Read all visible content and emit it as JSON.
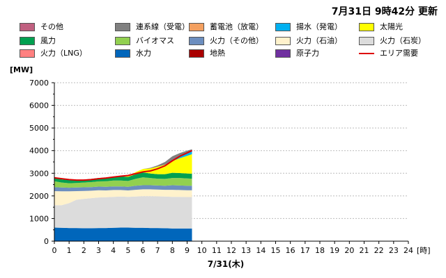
{
  "header": {
    "updated": "7月31日  9時42分 更新"
  },
  "chart_data": {
    "type": "area",
    "ylabel": "[MW]",
    "xlabel_unit": "[時]",
    "date_label": "7/31(木)",
    "ylim": [
      0,
      7000
    ],
    "yticks": [
      0,
      1000,
      2000,
      3000,
      4000,
      5000,
      6000,
      7000
    ],
    "xlim": [
      0,
      24
    ],
    "xticks": [
      0,
      1,
      2,
      3,
      4,
      5,
      6,
      7,
      8,
      9,
      10,
      11,
      12,
      13,
      14,
      15,
      16,
      17,
      18,
      19,
      20,
      21,
      22,
      23,
      24
    ],
    "grid": "horizontal",
    "legend_position": "top",
    "x": [
      0,
      0.5,
      1,
      1.5,
      2,
      2.5,
      3,
      3.5,
      4,
      4.5,
      5,
      5.5,
      6,
      6.5,
      7,
      7.5,
      8,
      8.5,
      9,
      9.33
    ],
    "series": [
      {
        "name": "水力",
        "color": "#0066bb",
        "values": [
          600,
          590,
          580,
          580,
          570,
          570,
          580,
          580,
          590,
          600,
          600,
          590,
          590,
          580,
          580,
          570,
          560,
          560,
          560,
          560
        ]
      },
      {
        "name": "火力（石炭）",
        "color": "#dcdcdc",
        "values": [
          990,
          1000,
          1100,
          1250,
          1300,
          1330,
          1350,
          1360,
          1370,
          1370,
          1360,
          1380,
          1400,
          1410,
          1400,
          1400,
          1400,
          1400,
          1390,
          1390
        ]
      },
      {
        "name": "火力（石油）",
        "color": "#fff2cc",
        "values": [
          620,
          610,
          520,
          380,
          350,
          330,
          320,
          300,
          300,
          290,
          280,
          300,
          300,
          300,
          300,
          300,
          310,
          300,
          300,
          300
        ]
      },
      {
        "name": "火力（その他）",
        "color": "#6c8ebf",
        "values": [
          180,
          170,
          160,
          160,
          160,
          160,
          160,
          160,
          160,
          160,
          160,
          180,
          180,
          180,
          180,
          180,
          200,
          200,
          200,
          200
        ]
      },
      {
        "name": "バイオマス",
        "color": "#92d050",
        "values": [
          260,
          220,
          200,
          200,
          210,
          220,
          230,
          250,
          260,
          260,
          260,
          300,
          350,
          320,
          300,
          300,
          320,
          330,
          320,
          310
        ]
      },
      {
        "name": "風力",
        "color": "#00a050",
        "values": [
          150,
          140,
          140,
          130,
          130,
          140,
          150,
          160,
          170,
          180,
          180,
          200,
          220,
          200,
          200,
          210,
          230,
          220,
          220,
          220
        ]
      },
      {
        "name": "太陽光",
        "color": "#ffff00",
        "values": [
          0,
          0,
          0,
          0,
          0,
          0,
          0,
          0,
          0,
          0,
          30,
          100,
          150,
          220,
          330,
          420,
          520,
          650,
          780,
          860
        ]
      },
      {
        "name": "揚水（発電）",
        "color": "#00b0f0",
        "values": [
          0,
          0,
          0,
          0,
          0,
          0,
          0,
          0,
          0,
          0,
          0,
          0,
          0,
          0,
          0,
          0,
          30,
          80,
          130,
          160
        ]
      },
      {
        "name": "連系線（受電）",
        "color": "#808080",
        "values": [
          0,
          0,
          0,
          0,
          0,
          0,
          0,
          0,
          0,
          0,
          0,
          0,
          0,
          30,
          60,
          120,
          180,
          150,
          100,
          60
        ]
      },
      {
        "name": "その他",
        "color": "#c06080",
        "values": [
          0,
          0,
          0,
          0,
          0,
          0,
          0,
          0,
          0,
          0,
          0,
          0,
          0,
          0,
          0,
          0,
          0,
          0,
          0,
          0
        ]
      }
    ],
    "line_series": [
      {
        "name": "エリア需要",
        "color": "#dd0000",
        "values": [
          2800,
          2760,
          2720,
          2700,
          2700,
          2720,
          2760,
          2790,
          2830,
          2870,
          2900,
          2980,
          3060,
          3100,
          3200,
          3330,
          3550,
          3750,
          3900,
          4000
        ]
      }
    ],
    "legend": [
      {
        "name": "その他",
        "color": "#c06080",
        "kind": "box"
      },
      {
        "name": "連系線（受電）",
        "color": "#808080",
        "kind": "box"
      },
      {
        "name": "蓄電池（放電）",
        "color": "#f4a060",
        "kind": "box"
      },
      {
        "name": "揚水（発電）",
        "color": "#00b0f0",
        "kind": "box"
      },
      {
        "name": "太陽光",
        "color": "#ffff00",
        "kind": "box"
      },
      {
        "name": "風力",
        "color": "#00a050",
        "kind": "box"
      },
      {
        "name": "バイオマス",
        "color": "#92d050",
        "kind": "box"
      },
      {
        "name": "火力（その他）",
        "color": "#6c8ebf",
        "kind": "box"
      },
      {
        "name": "火力（石油）",
        "color": "#fff2cc",
        "kind": "box"
      },
      {
        "name": "火力（石炭）",
        "color": "#dcdcdc",
        "kind": "box"
      },
      {
        "name": "火力（LNG）",
        "color": "#ff8080",
        "kind": "box"
      },
      {
        "name": "水力",
        "color": "#0066bb",
        "kind": "box"
      },
      {
        "name": "地熱",
        "color": "#aa0000",
        "kind": "box"
      },
      {
        "name": "原子力",
        "color": "#7030a0",
        "kind": "box"
      },
      {
        "name": "エリア需要",
        "color": "#dd0000",
        "kind": "line"
      }
    ]
  }
}
